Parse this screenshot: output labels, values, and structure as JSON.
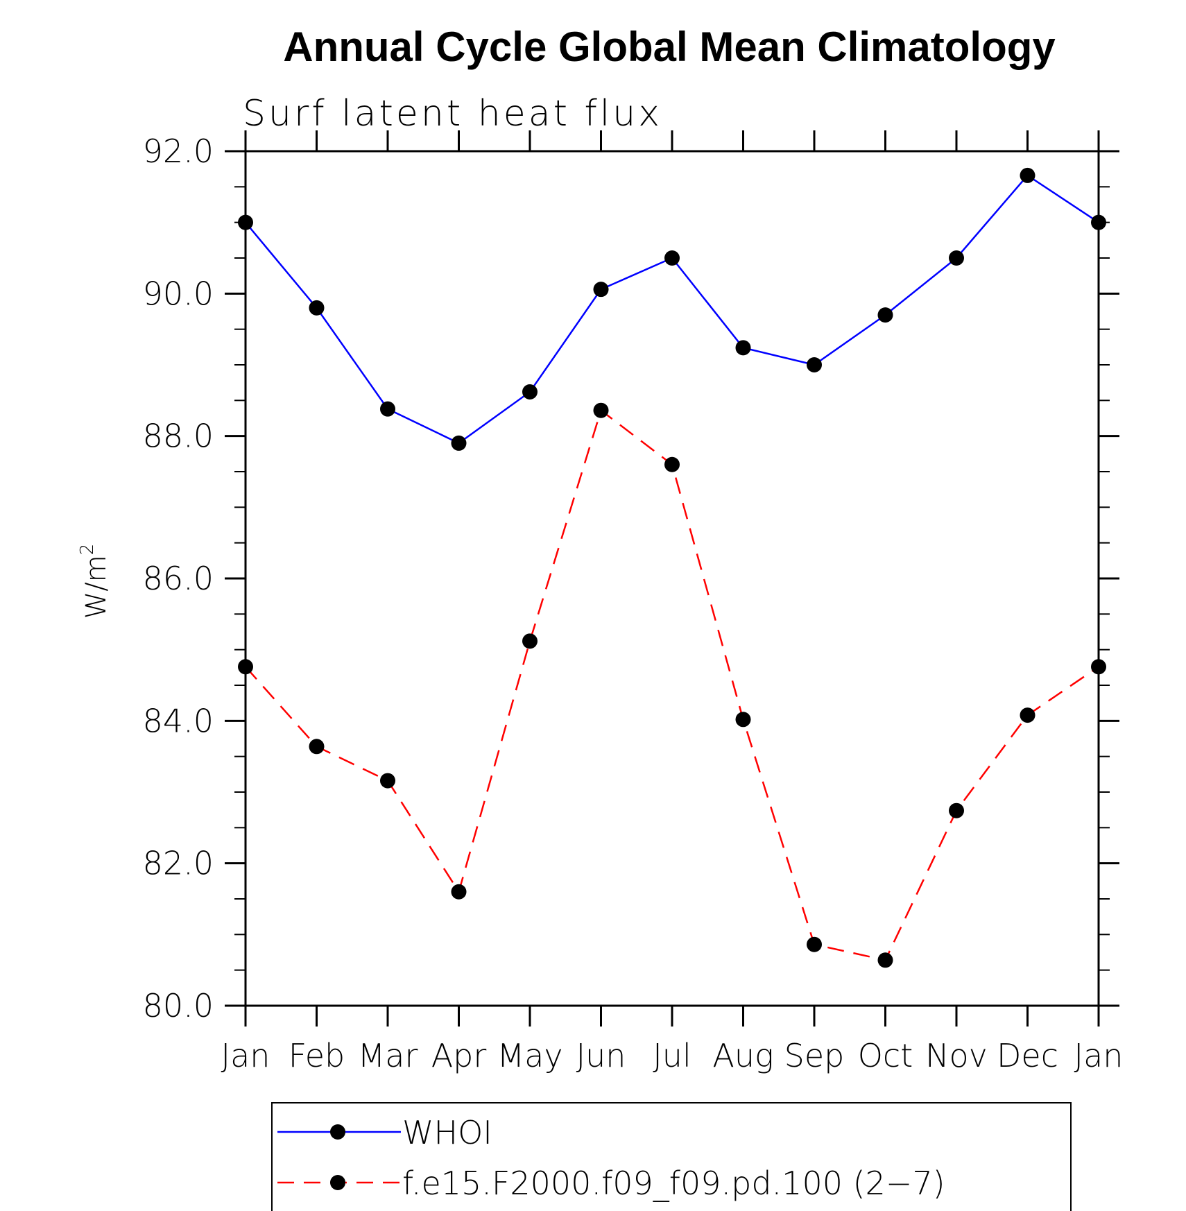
{
  "chart_data": {
    "type": "line",
    "title": "Annual Cycle Global Mean Climatology",
    "subtitle": "Surf latent heat flux",
    "ylabel": "W/m",
    "ylabel_superscript": "2",
    "categories": [
      "Jan",
      "Feb",
      "Mar",
      "Apr",
      "May",
      "Jun",
      "Jul",
      "Aug",
      "Sep",
      "Oct",
      "Nov",
      "Dec",
      "Jan"
    ],
    "ylim": [
      80.0,
      92.0
    ],
    "yticks": [
      "80.0",
      "82.0",
      "84.0",
      "86.0",
      "88.0",
      "90.0",
      "92.0"
    ],
    "grid": false,
    "legend_position": "bottom",
    "series": [
      {
        "name": "WHOI",
        "color": "#0000ff",
        "dashed": false,
        "values": [
          91.0,
          89.8,
          88.38,
          87.9,
          88.62,
          90.06,
          90.5,
          89.24,
          89.0,
          89.7,
          90.5,
          91.66,
          91.0
        ]
      },
      {
        "name": "f.e15.F2000.f09_f09.pd.100 (2−7)",
        "color": "#ff0000",
        "dashed": true,
        "values": [
          84.76,
          83.64,
          83.16,
          81.6,
          85.12,
          88.36,
          87.6,
          84.02,
          80.86,
          80.64,
          82.74,
          84.08,
          84.76
        ]
      }
    ]
  }
}
